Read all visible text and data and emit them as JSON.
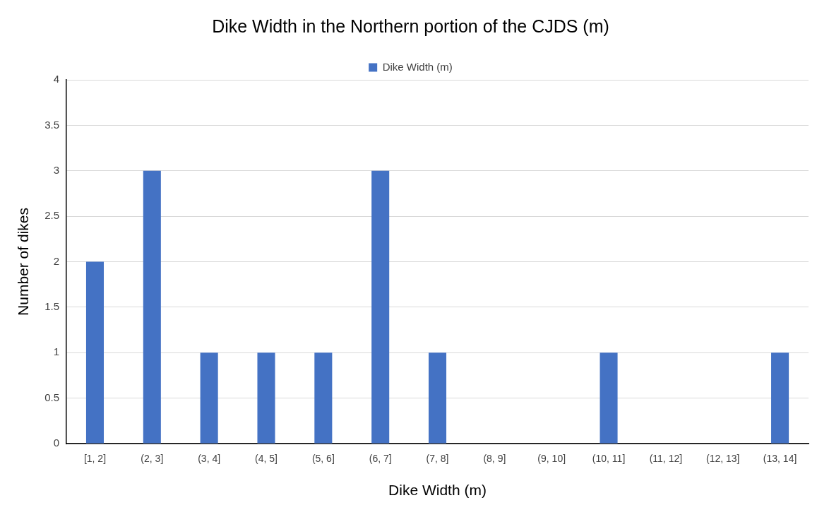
{
  "chart_data": {
    "type": "bar",
    "title": "Dike Width in the Northern portion of the CJDS (m)",
    "xlabel": "Dike Width (m)",
    "ylabel": "Number of dikes",
    "categories": [
      "[1, 2]",
      "(2, 3]",
      "(3, 4]",
      "(4, 5]",
      "(5, 6]",
      "(6, 7]",
      "(7, 8]",
      "(8, 9]",
      "(9, 10]",
      "(10, 11]",
      "(11, 12]",
      "(12, 13]",
      "(13, 14]"
    ],
    "series": [
      {
        "name": "Dike Width (m)",
        "color": "#4472c4",
        "values": [
          2,
          3,
          1,
          1,
          1,
          3,
          1,
          0,
          0,
          1,
          0,
          0,
          1
        ]
      }
    ],
    "ylim": [
      0,
      4
    ],
    "yticks": [
      0,
      0.5,
      1,
      1.5,
      2,
      2.5,
      3,
      3.5,
      4
    ],
    "grid": "y",
    "legend": "top"
  }
}
